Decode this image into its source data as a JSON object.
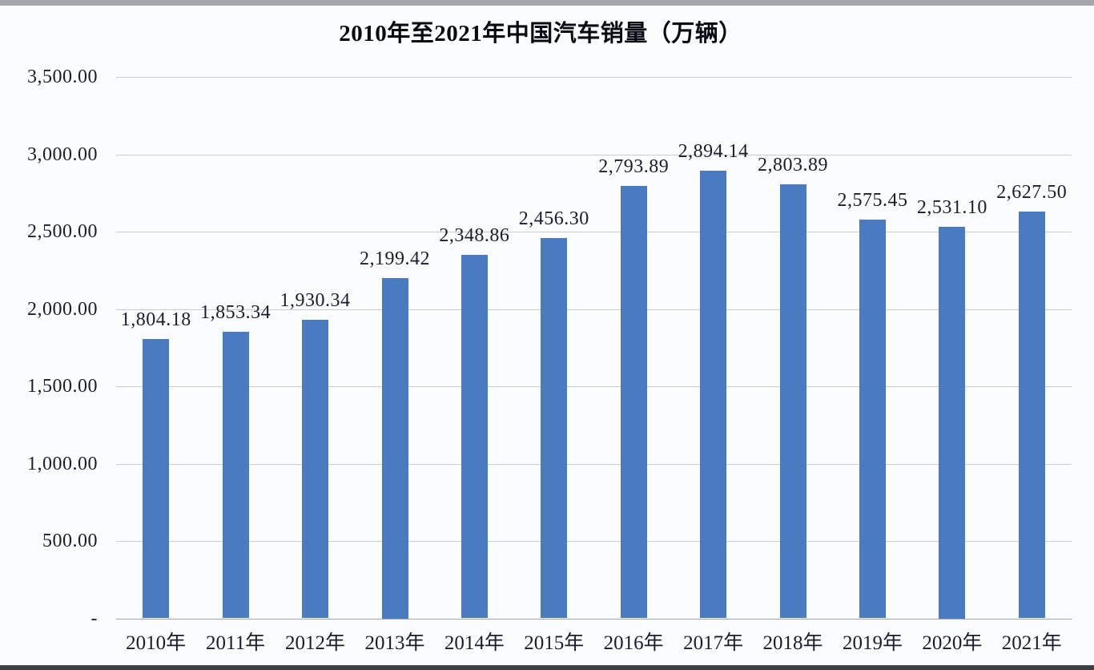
{
  "photo_edges": {
    "top_color": "#a4a7ab",
    "bottom_color": "#3e4043"
  },
  "chart_data": {
    "type": "bar",
    "title": "2010年至2021年中国汽车销量（万辆）",
    "categories": [
      "2010年",
      "2011年",
      "2012年",
      "2013年",
      "2014年",
      "2015年",
      "2016年",
      "2017年",
      "2018年",
      "2019年",
      "2020年",
      "2021年"
    ],
    "values": [
      1804.18,
      1853.34,
      1930.34,
      2199.42,
      2348.86,
      2456.3,
      2793.89,
      2894.14,
      2803.89,
      2575.45,
      2531.1,
      2627.5
    ],
    "value_labels": [
      "1,804.18",
      "1,853.34",
      "1,930.34",
      "2,199.42",
      "2,348.86",
      "2,456.30",
      "2,793.89",
      "2,894.14",
      "2,803.89",
      "2,575.45",
      "2,531.10",
      "2,627.50"
    ],
    "xlabel": "",
    "ylabel": "",
    "ylim": [
      0,
      3500
    ],
    "y_ticks": [
      {
        "label": "3,500.00",
        "value": 3500
      },
      {
        "label": "3,000.00",
        "value": 3000
      },
      {
        "label": "2,500.00",
        "value": 2500
      },
      {
        "label": "2,000.00",
        "value": 2000
      },
      {
        "label": "1,500.00",
        "value": 1500
      },
      {
        "label": "1,000.00",
        "value": 1000
      },
      {
        "label": "500.00",
        "value": 500
      },
      {
        "label": "-",
        "value": 0
      }
    ],
    "grid": true,
    "legend": false,
    "colors": {
      "bar": "#4a7bc0",
      "gridline": "#c9ccd0",
      "axis_line": "#9fa6ac",
      "label_text": "#1c1c30",
      "title_text": "#0a0a14",
      "background": "#fbfcfd"
    }
  }
}
